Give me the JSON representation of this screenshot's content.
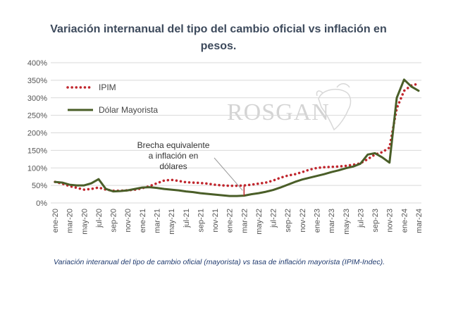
{
  "chart_data": {
    "type": "line",
    "title": "Variación internanual del tipo del cambio oficial vs inflación en pesos.",
    "caption": "Variación interanual del tipo de cambio oficial (mayorista) vs tasa de inflación mayorista (IPIM-Indec).",
    "watermark": "ROSGAN",
    "annotation": {
      "lines": [
        "Brecha equivalente",
        "a inflación en",
        "dólares"
      ],
      "x": "mar-22"
    },
    "y_ticks": [
      "0%",
      "50%",
      "100%",
      "150%",
      "200%",
      "250%",
      "300%",
      "350%",
      "400%"
    ],
    "ylim": [
      0,
      400
    ],
    "x": [
      "ene-20",
      "feb-20",
      "mar-20",
      "abr-20",
      "may-20",
      "jun-20",
      "jul-20",
      "ago-20",
      "sep-20",
      "oct-20",
      "nov-20",
      "dic-20",
      "ene-21",
      "feb-21",
      "mar-21",
      "abr-21",
      "may-21",
      "jun-21",
      "jul-21",
      "ago-21",
      "sep-21",
      "oct-21",
      "nov-21",
      "dic-21",
      "ene-22",
      "feb-22",
      "mar-22",
      "abr-22",
      "may-22",
      "jun-22",
      "jul-22",
      "ago-22",
      "sep-22",
      "oct-22",
      "nov-22",
      "dic-22",
      "ene-23",
      "feb-23",
      "mar-23",
      "abr-23",
      "may-23",
      "jun-23",
      "jul-23",
      "ago-23",
      "sep-23",
      "oct-23",
      "nov-23",
      "dic-23",
      "ene-24",
      "feb-24",
      "mar-24"
    ],
    "x_tick_labels": [
      "ene-20",
      "mar-20",
      "may-20",
      "jul-20",
      "sep-20",
      "nov-20",
      "ene-21",
      "mar-21",
      "may-21",
      "jul-21",
      "sep-21",
      "nov-21",
      "ene-22",
      "mar-22",
      "may-22",
      "jul-22",
      "sep-22",
      "nov-22",
      "ene-23",
      "mar-23",
      "may-23",
      "jul-23",
      "sep-23",
      "nov-23",
      "ene-24",
      "mar-24"
    ],
    "series": [
      {
        "name": "IPIM",
        "color": "#c0262d",
        "style": "dotted",
        "values": [
          60,
          55,
          48,
          43,
          38,
          40,
          44,
          38,
          35,
          35,
          36,
          38,
          42,
          48,
          56,
          64,
          66,
          63,
          59,
          58,
          57,
          55,
          52,
          50,
          49,
          49,
          50,
          52,
          55,
          58,
          64,
          72,
          78,
          82,
          88,
          95,
          100,
          102,
          103,
          104,
          106,
          109,
          113,
          125,
          138,
          145,
          158,
          270,
          320,
          335,
          340
        ]
      },
      {
        "name": "Dólar Mayorista",
        "color": "#4a5e28",
        "style": "solid",
        "values": [
          60,
          58,
          52,
          50,
          50,
          56,
          68,
          40,
          33,
          34,
          36,
          40,
          44,
          45,
          43,
          40,
          38,
          36,
          33,
          31,
          28,
          26,
          24,
          22,
          20,
          20,
          21,
          25,
          28,
          32,
          37,
          44,
          52,
          60,
          67,
          72,
          77,
          82,
          88,
          93,
          99,
          104,
          112,
          138,
          142,
          130,
          115,
          300,
          352,
          332,
          320
        ]
      }
    ]
  }
}
